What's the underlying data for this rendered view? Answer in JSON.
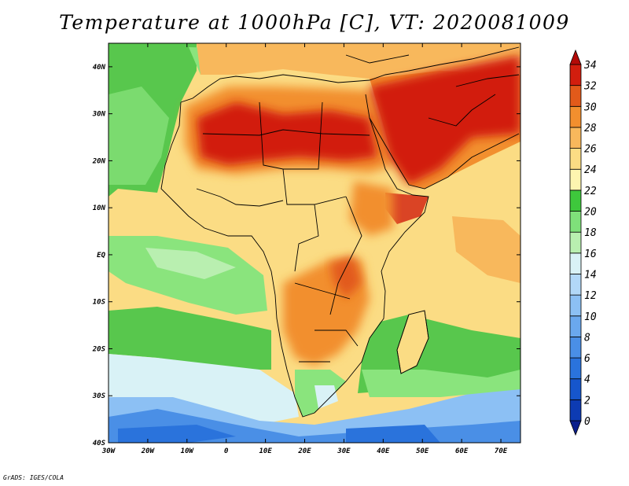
{
  "title": "Temperature at 1000hPa [C], VT: 2020081009",
  "footer": "GrADS: IGES/COLA",
  "map": {
    "projection": "lat-lon",
    "lon_range": [
      -30,
      75
    ],
    "lat_range": [
      -40,
      45
    ],
    "lon_ticks": [
      "30W",
      "20W",
      "10W",
      "0",
      "10E",
      "20E",
      "30E",
      "40E",
      "50E",
      "60E",
      "70E"
    ],
    "lat_ticks": [
      "40N",
      "30N",
      "20N",
      "10N",
      "EQ",
      "10S",
      "20S",
      "30S",
      "40S"
    ],
    "field": "temperature at 1000hPa",
    "units": "C",
    "valid_time": "2020081009"
  },
  "colorbar": {
    "levels": [
      0,
      2,
      4,
      6,
      8,
      10,
      12,
      14,
      16,
      18,
      20,
      22,
      24,
      26,
      28,
      30,
      32,
      34
    ],
    "colors": [
      "#0b1f8c",
      "#0d3bb3",
      "#1656cc",
      "#2a73dc",
      "#4a8fe6",
      "#6aa8ee",
      "#8cc0f4",
      "#b2d8f8",
      "#d9f2f6",
      "#b9efb0",
      "#7fe07a",
      "#3ec83c",
      "#fdf5b0",
      "#fbdc84",
      "#f8b85c",
      "#f28f2e",
      "#e25a1a",
      "#d21e0e",
      "#b30a07"
    ]
  },
  "palette": {
    "ocean_north_green": "#58c74d",
    "ocean_light_green": "#8ae47d",
    "ocean_pale": "#d9f2f6",
    "ocean_blue": "#8cc0f4",
    "land_yellow": "#fbdc84",
    "land_orange": "#f28f2e",
    "land_red": "#d21e0e"
  }
}
